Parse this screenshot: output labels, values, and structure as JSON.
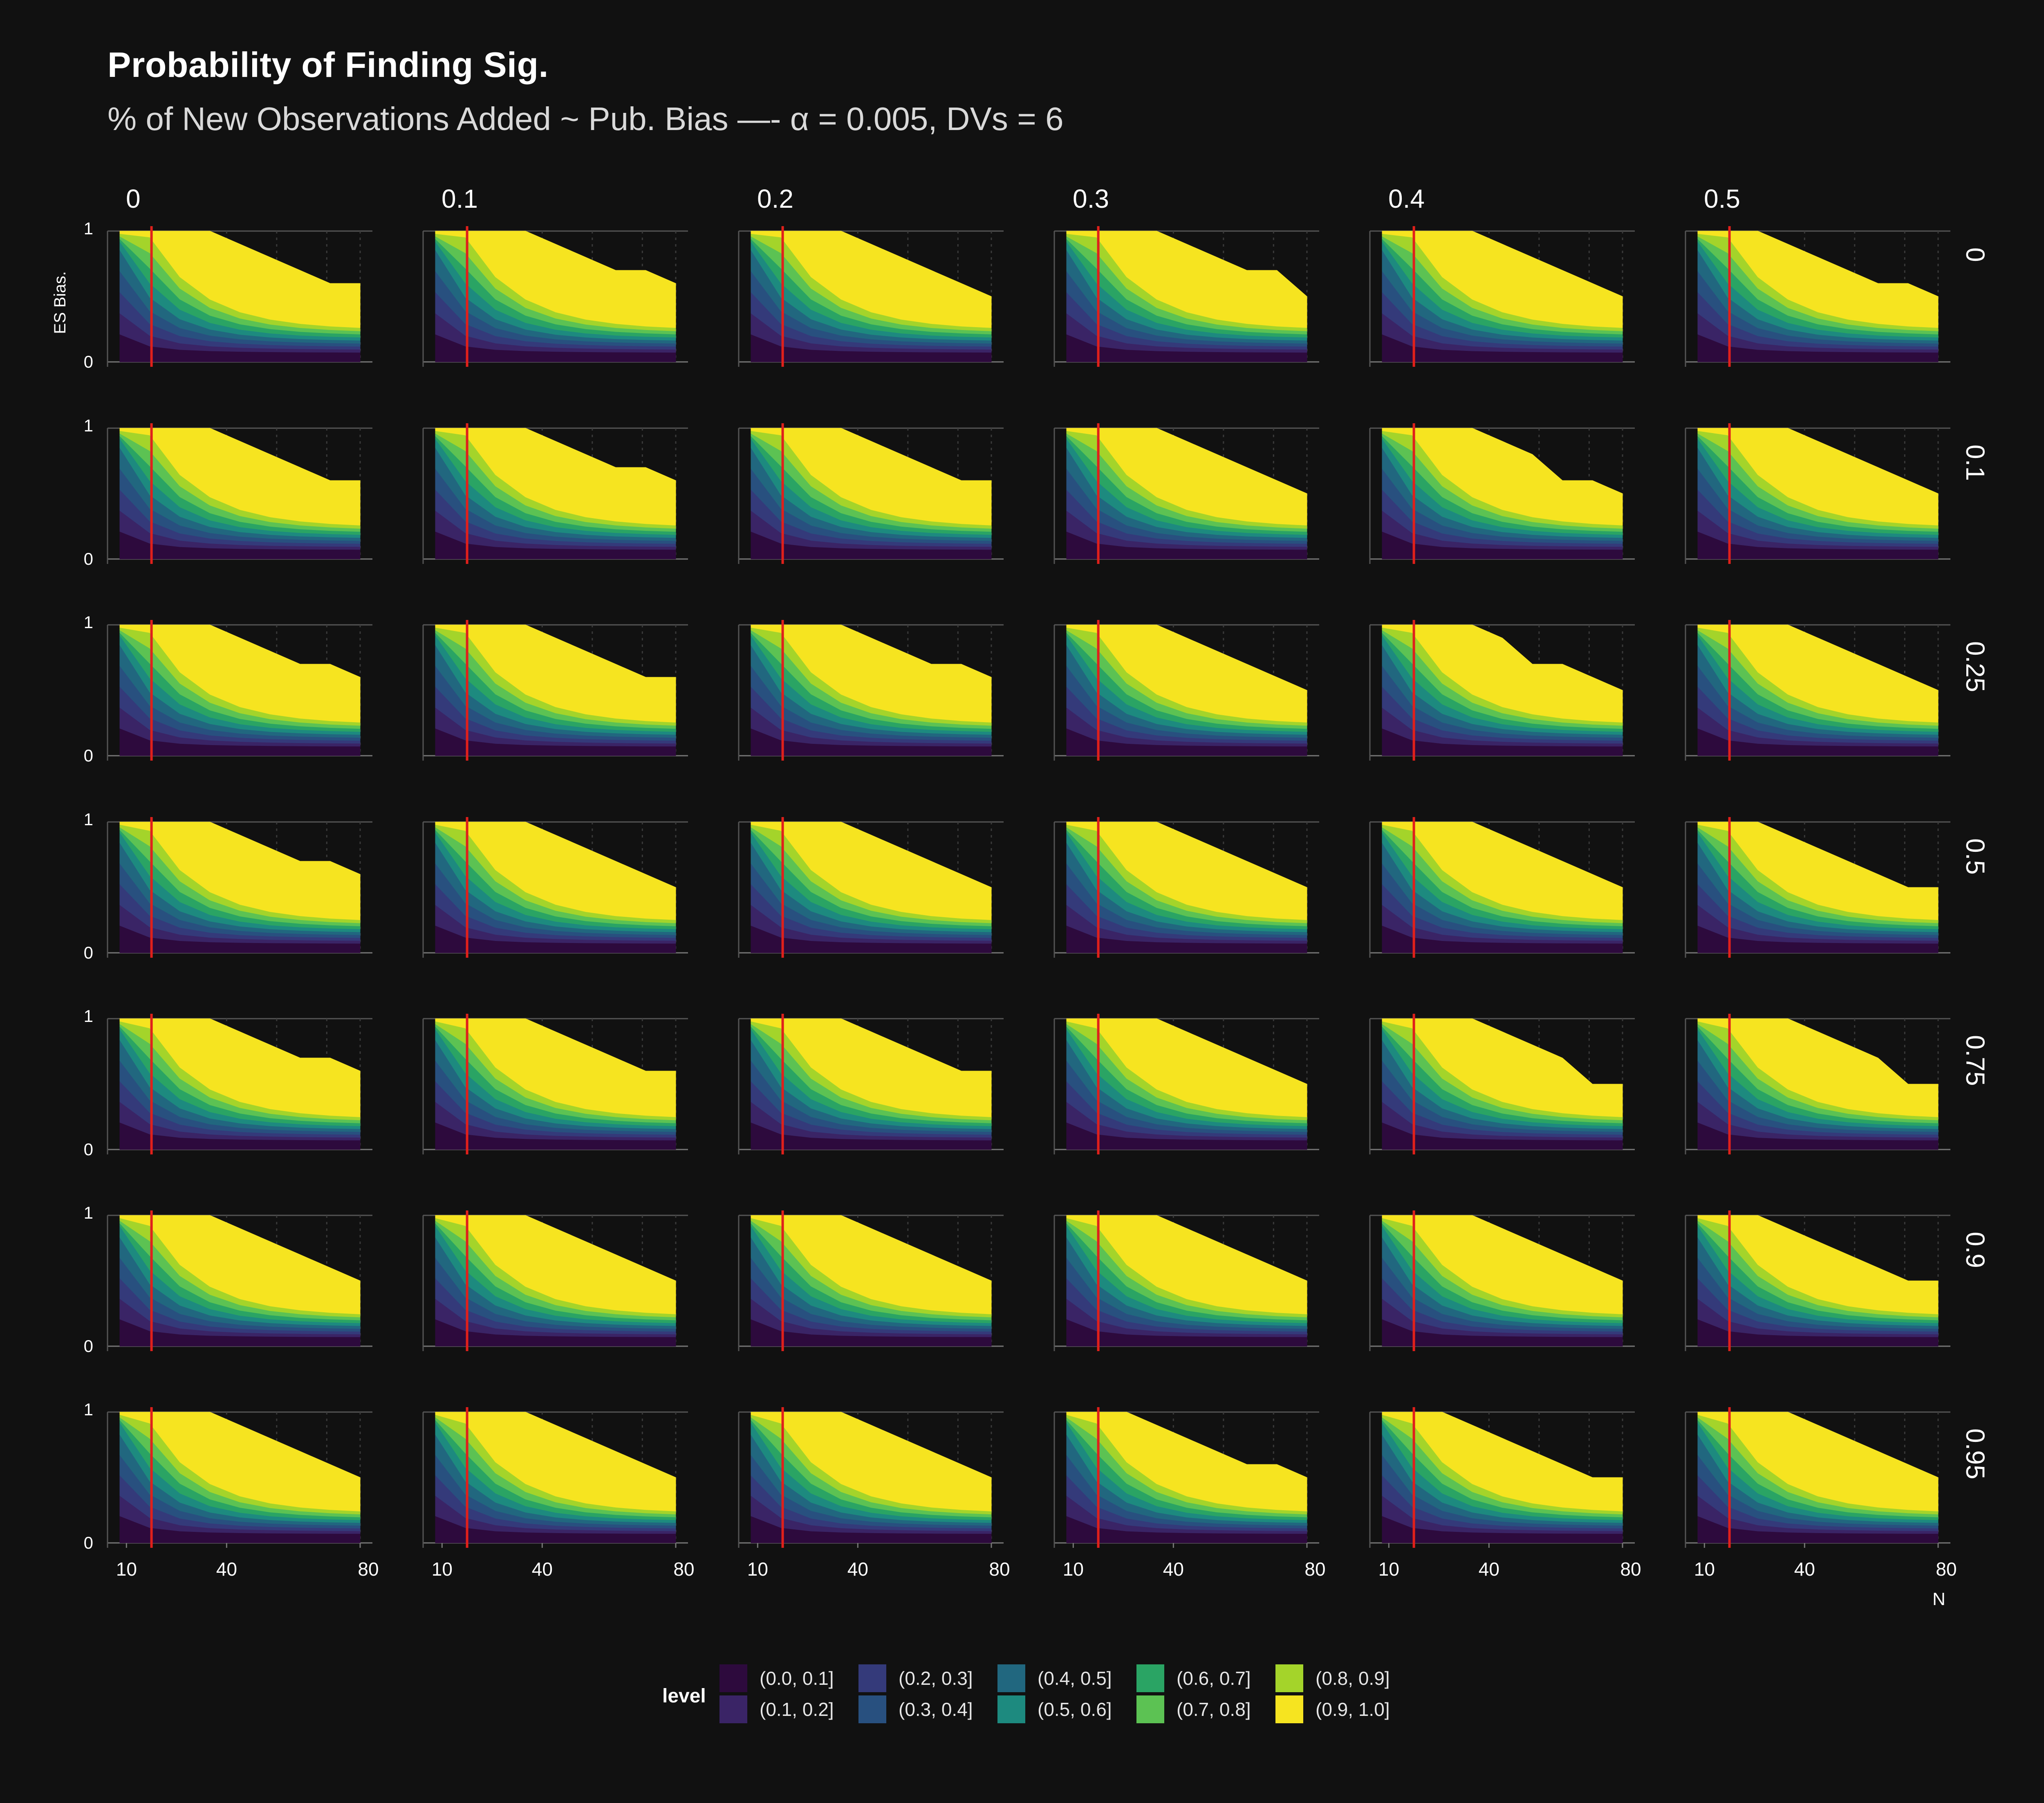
{
  "title": "Probability of Finding Sig.",
  "subtitle": "% of New Observations Added ~ Pub. Bias —- α = 0.005, DVs = 6",
  "chart_data": {
    "type": "heatmap",
    "description_grid": "facet grid of filled contour plots",
    "column_facets": [
      "0",
      "0.1",
      "0.2",
      "0.3",
      "0.4",
      "0.5"
    ],
    "row_facets": [
      "0",
      "0.1",
      "0.25",
      "0.5",
      "0.75",
      "0.9",
      "0.95"
    ],
    "xlabel": "N",
    "ylabel": "ES Bias.",
    "x_ticks": [
      "10",
      "40",
      "80"
    ],
    "y_ticks": [
      "0",
      "1"
    ],
    "xlim": [
      8,
      80
    ],
    "ylim": [
      0,
      1
    ],
    "reference_line_x": 17.5,
    "reference_line_color": "#e0201b",
    "legend_title": "level",
    "levels": [
      {
        "label": "(0.0, 0.1]",
        "color": "#2d0a3d"
      },
      {
        "label": "(0.1, 0.2]",
        "color": "#3a2466"
      },
      {
        "label": "(0.2, 0.3]",
        "color": "#343a7a"
      },
      {
        "label": "(0.3, 0.4]",
        "color": "#28507f"
      },
      {
        "label": "(0.4, 0.5]",
        "color": "#21677f"
      },
      {
        "label": "(0.5, 0.6]",
        "color": "#1d8a7f"
      },
      {
        "label": "(0.6, 0.7]",
        "color": "#2aa464"
      },
      {
        "label": "(0.7, 0.8]",
        "color": "#5cc253"
      },
      {
        "label": "(0.8, 0.9]",
        "color": "#a4d42a"
      },
      {
        "label": "(0.9, 1.0]",
        "color": "#f6e420"
      }
    ],
    "yellow_boundary_top": [
      [
        [
          1,
          1,
          1,
          0.9,
          0.8,
          0.7,
          0.6,
          0.6
        ],
        [
          1,
          1,
          1,
          0.9,
          0.8,
          0.7,
          0.7,
          0.6
        ],
        [
          1,
          1,
          1,
          0.9,
          0.8,
          0.7,
          0.6,
          0.5
        ],
        [
          1,
          1,
          1,
          0.9,
          0.8,
          0.7,
          0.7,
          0.5
        ],
        [
          1,
          1,
          1,
          0.9,
          0.8,
          0.7,
          0.6,
          0.5
        ],
        [
          1,
          1,
          0.9,
          0.8,
          0.7,
          0.6,
          0.6,
          0.5
        ]
      ],
      [
        [
          1,
          1,
          1,
          0.9,
          0.8,
          0.7,
          0.6,
          0.6
        ],
        [
          1,
          1,
          1,
          0.9,
          0.8,
          0.7,
          0.7,
          0.6
        ],
        [
          1,
          1,
          1,
          0.9,
          0.8,
          0.7,
          0.6,
          0.6
        ],
        [
          1,
          1,
          1,
          0.9,
          0.8,
          0.7,
          0.6,
          0.5
        ],
        [
          1,
          1,
          1,
          0.9,
          0.8,
          0.6,
          0.6,
          0.5
        ],
        [
          1,
          1,
          1,
          0.9,
          0.8,
          0.7,
          0.6,
          0.5
        ]
      ],
      [
        [
          1,
          1,
          1,
          0.9,
          0.8,
          0.7,
          0.7,
          0.6
        ],
        [
          1,
          1,
          1,
          0.9,
          0.8,
          0.7,
          0.6,
          0.6
        ],
        [
          1,
          1,
          1,
          0.9,
          0.8,
          0.7,
          0.7,
          0.6
        ],
        [
          1,
          1,
          1,
          0.9,
          0.8,
          0.7,
          0.6,
          0.5
        ],
        [
          1,
          1,
          1,
          0.9,
          0.7,
          0.7,
          0.6,
          0.5
        ],
        [
          1,
          1,
          1,
          0.9,
          0.8,
          0.7,
          0.6,
          0.5
        ]
      ],
      [
        [
          1,
          1,
          1,
          0.9,
          0.8,
          0.7,
          0.7,
          0.6
        ],
        [
          1,
          1,
          1,
          0.9,
          0.8,
          0.7,
          0.6,
          0.5
        ],
        [
          1,
          1,
          1,
          0.9,
          0.8,
          0.7,
          0.6,
          0.5
        ],
        [
          1,
          1,
          1,
          0.9,
          0.8,
          0.7,
          0.6,
          0.5
        ],
        [
          1,
          1,
          1,
          0.9,
          0.8,
          0.7,
          0.6,
          0.5
        ],
        [
          1,
          1,
          0.9,
          0.8,
          0.7,
          0.6,
          0.5,
          0.5
        ]
      ],
      [
        [
          1,
          1,
          1,
          0.9,
          0.8,
          0.7,
          0.7,
          0.6
        ],
        [
          1,
          1,
          1,
          0.9,
          0.8,
          0.7,
          0.6,
          0.6
        ],
        [
          1,
          1,
          1,
          0.9,
          0.8,
          0.7,
          0.6,
          0.6
        ],
        [
          1,
          1,
          1,
          0.9,
          0.8,
          0.7,
          0.6,
          0.5
        ],
        [
          1,
          1,
          1,
          0.9,
          0.8,
          0.7,
          0.5,
          0.5
        ],
        [
          1,
          1,
          1,
          0.9,
          0.8,
          0.7,
          0.5,
          0.5
        ]
      ],
      [
        [
          1,
          1,
          1,
          0.9,
          0.8,
          0.7,
          0.6,
          0.5
        ],
        [
          1,
          1,
          1,
          0.9,
          0.8,
          0.7,
          0.6,
          0.5
        ],
        [
          1,
          1,
          1,
          0.9,
          0.8,
          0.7,
          0.6,
          0.5
        ],
        [
          1,
          1,
          1,
          0.9,
          0.8,
          0.7,
          0.6,
          0.5
        ],
        [
          1,
          1,
          1,
          0.9,
          0.8,
          0.7,
          0.6,
          0.5
        ],
        [
          1,
          1,
          0.9,
          0.8,
          0.7,
          0.6,
          0.5,
          0.5
        ]
      ],
      [
        [
          1,
          1,
          1,
          0.9,
          0.8,
          0.7,
          0.6,
          0.5
        ],
        [
          1,
          1,
          1,
          0.9,
          0.8,
          0.7,
          0.6,
          0.5
        ],
        [
          1,
          1,
          1,
          0.9,
          0.8,
          0.7,
          0.6,
          0.5
        ],
        [
          1,
          1,
          0.9,
          0.8,
          0.7,
          0.6,
          0.6,
          0.5
        ],
        [
          1,
          1,
          0.9,
          0.8,
          0.7,
          0.6,
          0.5,
          0.5
        ],
        [
          1,
          1,
          1,
          0.9,
          0.8,
          0.7,
          0.6,
          0.5
        ]
      ]
    ]
  }
}
